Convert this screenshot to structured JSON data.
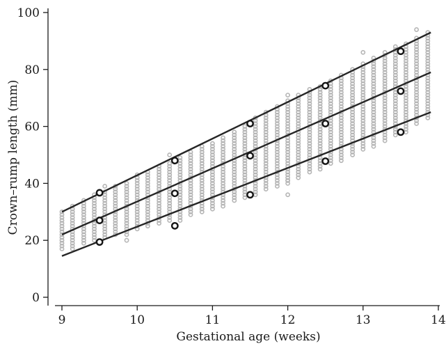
{
  "chart_data": {
    "type": "scatter",
    "title": "",
    "xlabel": "Gestational age (weeks)",
    "ylabel": "Crown–rump length (mm)",
    "xlim": [
      9,
      14
    ],
    "ylim": [
      0,
      100
    ],
    "xticks": [
      9,
      10,
      11,
      12,
      13,
      14
    ],
    "yticks": [
      0,
      20,
      40,
      60,
      80,
      100
    ],
    "grid": false,
    "legend": "none",
    "colors": {
      "cloud": "#b5b5b5",
      "lines": "#262626",
      "points": "#151515"
    },
    "measurement_cloud": {
      "weeks": [
        9.0,
        9.14,
        9.29,
        9.43,
        9.57,
        9.71,
        9.86,
        10.0,
        10.14,
        10.29,
        10.43,
        10.57,
        10.71,
        10.86,
        11.0,
        11.14,
        11.29,
        11.43,
        11.57,
        11.71,
        11.86,
        12.0,
        12.14,
        12.29,
        12.43,
        12.57,
        12.71,
        12.86,
        13.0,
        13.14,
        13.29,
        13.43,
        13.57,
        13.71,
        13.86
      ],
      "low": [
        17,
        17,
        19,
        20,
        21,
        22,
        22,
        24,
        25,
        26,
        27,
        27,
        29,
        30,
        31,
        33,
        34,
        35,
        36,
        38,
        39,
        40,
        42,
        44,
        45,
        47,
        48,
        50,
        52,
        53,
        55,
        57,
        59,
        61,
        63
      ],
      "high": [
        30,
        32,
        34,
        36,
        37,
        39,
        40,
        42,
        44,
        46,
        47,
        49,
        51,
        53,
        54,
        56,
        58,
        60,
        63,
        65,
        67,
        69,
        71,
        73,
        74,
        76,
        78,
        80,
        82,
        84,
        86,
        88,
        89,
        91,
        93
      ],
      "outliers": [
        {
          "x": 9.57,
          "y": 39
        },
        {
          "x": 9.86,
          "y": 20
        },
        {
          "x": 10.0,
          "y": 43
        },
        {
          "x": 10.43,
          "y": 50
        },
        {
          "x": 11.14,
          "y": 32
        },
        {
          "x": 11.57,
          "y": 36
        },
        {
          "x": 12.0,
          "y": 36
        },
        {
          "x": 12.0,
          "y": 71
        },
        {
          "x": 12.0,
          "y": 41
        },
        {
          "x": 13.0,
          "y": 86
        },
        {
          "x": 13.57,
          "y": 58
        },
        {
          "x": 13.71,
          "y": 94
        }
      ]
    },
    "series": [
      {
        "x": [
          9.0,
          13.9
        ],
        "y": [
          30.0,
          93.0
        ]
      },
      {
        "x": [
          9.0,
          13.9
        ],
        "y": [
          22.0,
          79.0
        ]
      },
      {
        "x": [
          9.0,
          13.9
        ],
        "y": [
          14.5,
          65.0
        ]
      }
    ],
    "reference_points": [
      {
        "x": 9.5,
        "y": 36.7
      },
      {
        "x": 9.5,
        "y": 27.0
      },
      {
        "x": 9.5,
        "y": 19.4
      },
      {
        "x": 10.5,
        "y": 48.0
      },
      {
        "x": 10.5,
        "y": 36.5
      },
      {
        "x": 10.5,
        "y": 25.1
      },
      {
        "x": 11.5,
        "y": 61.0
      },
      {
        "x": 11.5,
        "y": 49.7
      },
      {
        "x": 11.5,
        "y": 36.0
      },
      {
        "x": 12.5,
        "y": 74.3
      },
      {
        "x": 12.5,
        "y": 61.0
      },
      {
        "x": 12.5,
        "y": 47.8
      },
      {
        "x": 13.5,
        "y": 86.4
      },
      {
        "x": 13.5,
        "y": 72.4
      },
      {
        "x": 13.5,
        "y": 58.0
      }
    ]
  }
}
